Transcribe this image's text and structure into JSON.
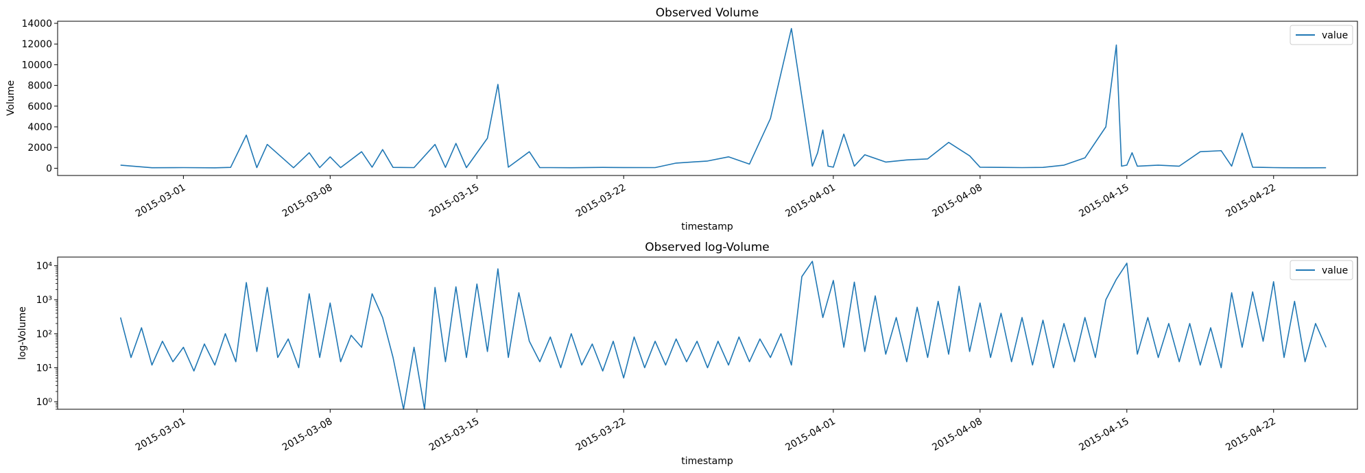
{
  "colors": {
    "series": "#1f77b4",
    "axis": "#000000",
    "background": "#ffffff"
  },
  "chart_data": [
    {
      "type": "line",
      "title": "Observed Volume",
      "xlabel": "timestamp",
      "ylabel": "Volume",
      "yscale": "linear",
      "x_range": [
        "2015-02-23",
        "2015-04-26"
      ],
      "ylim": [
        -700,
        14200
      ],
      "yticks": [
        0,
        2000,
        4000,
        6000,
        8000,
        10000,
        12000,
        14000
      ],
      "ytick_labels": [
        "0",
        "2000",
        "4000",
        "6000",
        "8000",
        "10000",
        "12000",
        "14000"
      ],
      "xticks": [
        "2015-03-01",
        "2015-03-08",
        "2015-03-15",
        "2015-03-22",
        "2015-04-01",
        "2015-04-08",
        "2015-04-15",
        "2015-04-22"
      ],
      "legend": {
        "position": "top-right",
        "entries": [
          "value"
        ]
      },
      "series": [
        {
          "name": "value",
          "x": [
            "2015-02-26 00:00",
            "2015-02-27 12:00",
            "2015-03-01 00:00",
            "2015-03-02 12:00",
            "2015-03-03 06:00",
            "2015-03-04 00:00",
            "2015-03-04 12:00",
            "2015-03-05 00:00",
            "2015-03-06 06:00",
            "2015-03-07 00:00",
            "2015-03-07 12:00",
            "2015-03-08 00:00",
            "2015-03-08 12:00",
            "2015-03-09 12:00",
            "2015-03-10 00:00",
            "2015-03-10 12:00",
            "2015-03-11 00:00",
            "2015-03-12 00:00",
            "2015-03-13 00:00",
            "2015-03-13 12:00",
            "2015-03-14 00:00",
            "2015-03-14 12:00",
            "2015-03-15 12:00",
            "2015-03-16 00:00",
            "2015-03-16 12:00",
            "2015-03-17 12:00",
            "2015-03-18 00:00",
            "2015-03-18 12:00",
            "2015-03-19 12:00",
            "2015-03-21 00:00",
            "2015-03-22 00:00",
            "2015-03-23 12:00",
            "2015-03-24 12:00",
            "2015-03-26 00:00",
            "2015-03-27 00:00",
            "2015-03-28 00:00",
            "2015-03-29 00:00",
            "2015-03-30 00:00",
            "2015-03-31 00:00",
            "2015-03-31 06:00",
            "2015-03-31 12:00",
            "2015-03-31 18:00",
            "2015-04-01 00:00",
            "2015-04-01 12:00",
            "2015-04-02 00:00",
            "2015-04-02 12:00",
            "2015-04-03 12:00",
            "2015-04-04 12:00",
            "2015-04-05 12:00",
            "2015-04-06 12:00",
            "2015-04-07 12:00",
            "2015-04-08 00:00",
            "2015-04-09 00:00",
            "2015-04-10 00:00",
            "2015-04-11 00:00",
            "2015-04-12 00:00",
            "2015-04-13 00:00",
            "2015-04-14 00:00",
            "2015-04-14 12:00",
            "2015-04-14 18:00",
            "2015-04-15 00:00",
            "2015-04-15 06:00",
            "2015-04-15 12:00",
            "2015-04-16 12:00",
            "2015-04-17 12:00",
            "2015-04-18 12:00",
            "2015-04-19 12:00",
            "2015-04-20 00:00",
            "2015-04-20 12:00",
            "2015-04-21 00:00",
            "2015-04-21 12:00",
            "2015-04-22 00:00",
            "2015-04-22 12:00",
            "2015-04-23 12:00",
            "2015-04-24 12:00"
          ],
          "values": [
            300,
            50,
            60,
            40,
            80,
            3200,
            60,
            2300,
            50,
            1500,
            60,
            1100,
            60,
            1600,
            100,
            1800,
            80,
            60,
            2300,
            80,
            2400,
            60,
            2900,
            8100,
            100,
            1600,
            60,
            60,
            50,
            80,
            70,
            60,
            500,
            700,
            1100,
            400,
            4800,
            13500,
            200,
            1500,
            3700,
            200,
            100,
            3300,
            200,
            1300,
            600,
            800,
            900,
            2500,
            1200,
            100,
            80,
            60,
            80,
            300,
            1000,
            4000,
            11900,
            200,
            300,
            1500,
            200,
            300,
            200,
            1600,
            1700,
            200,
            3400,
            100,
            80,
            60,
            50,
            40,
            50
          ]
        }
      ]
    },
    {
      "type": "line",
      "title": "Observed log-Volume",
      "xlabel": "timestamp",
      "ylabel": "log-Volume",
      "yscale": "log",
      "x_range": [
        "2015-02-23",
        "2015-04-26"
      ],
      "ylim": [
        0.6,
        18000
      ],
      "yticks": [
        1,
        10,
        100,
        1000,
        10000
      ],
      "ytick_labels": [
        "10⁰",
        "10¹",
        "10²",
        "10³",
        "10⁴"
      ],
      "xticks": [
        "2015-03-01",
        "2015-03-08",
        "2015-03-15",
        "2015-03-22",
        "2015-04-01",
        "2015-04-08",
        "2015-04-15",
        "2015-04-22"
      ],
      "legend": {
        "position": "top-right",
        "entries": [
          "value"
        ]
      },
      "series": [
        {
          "name": "value",
          "x": [
            "2015-02-26 00:00",
            "2015-02-26 12:00",
            "2015-02-27 00:00",
            "2015-02-27 12:00",
            "2015-02-28 00:00",
            "2015-02-28 12:00",
            "2015-03-01 00:00",
            "2015-03-01 12:00",
            "2015-03-02 00:00",
            "2015-03-02 12:00",
            "2015-03-03 00:00",
            "2015-03-03 12:00",
            "2015-03-04 00:00",
            "2015-03-04 12:00",
            "2015-03-05 00:00",
            "2015-03-05 12:00",
            "2015-03-06 00:00",
            "2015-03-06 12:00",
            "2015-03-07 00:00",
            "2015-03-07 12:00",
            "2015-03-08 00:00",
            "2015-03-08 12:00",
            "2015-03-09 00:00",
            "2015-03-09 12:00",
            "2015-03-10 00:00",
            "2015-03-10 12:00",
            "2015-03-11 00:00",
            "2015-03-11 12:00",
            "2015-03-12 00:00",
            "2015-03-12 12:00",
            "2015-03-13 00:00",
            "2015-03-13 12:00",
            "2015-03-14 00:00",
            "2015-03-14 12:00",
            "2015-03-15 00:00",
            "2015-03-15 12:00",
            "2015-03-16 00:00",
            "2015-03-16 12:00",
            "2015-03-17 00:00",
            "2015-03-17 12:00",
            "2015-03-18 00:00",
            "2015-03-18 12:00",
            "2015-03-19 00:00",
            "2015-03-19 12:00",
            "2015-03-20 00:00",
            "2015-03-20 12:00",
            "2015-03-21 00:00",
            "2015-03-21 12:00",
            "2015-03-22 00:00",
            "2015-03-22 12:00",
            "2015-03-23 00:00",
            "2015-03-23 12:00",
            "2015-03-24 00:00",
            "2015-03-24 12:00",
            "2015-03-25 00:00",
            "2015-03-25 12:00",
            "2015-03-26 00:00",
            "2015-03-26 12:00",
            "2015-03-27 00:00",
            "2015-03-27 12:00",
            "2015-03-28 00:00",
            "2015-03-28 12:00",
            "2015-03-29 00:00",
            "2015-03-29 12:00",
            "2015-03-30 00:00",
            "2015-03-30 12:00",
            "2015-03-31 00:00",
            "2015-03-31 12:00",
            "2015-04-01 00:00",
            "2015-04-01 12:00",
            "2015-04-02 00:00",
            "2015-04-02 12:00",
            "2015-04-03 00:00",
            "2015-04-03 12:00",
            "2015-04-04 00:00",
            "2015-04-04 12:00",
            "2015-04-05 00:00",
            "2015-04-05 12:00",
            "2015-04-06 00:00",
            "2015-04-06 12:00",
            "2015-04-07 00:00",
            "2015-04-07 12:00",
            "2015-04-08 00:00",
            "2015-04-08 12:00",
            "2015-04-09 00:00",
            "2015-04-09 12:00",
            "2015-04-10 00:00",
            "2015-04-10 12:00",
            "2015-04-11 00:00",
            "2015-04-11 12:00",
            "2015-04-12 00:00",
            "2015-04-12 12:00",
            "2015-04-13 00:00",
            "2015-04-13 12:00",
            "2015-04-14 00:00",
            "2015-04-14 12:00",
            "2015-04-15 00:00",
            "2015-04-15 12:00",
            "2015-04-16 00:00",
            "2015-04-16 12:00",
            "2015-04-17 00:00",
            "2015-04-17 12:00",
            "2015-04-18 00:00",
            "2015-04-18 12:00",
            "2015-04-19 00:00",
            "2015-04-19 12:00",
            "2015-04-20 00:00",
            "2015-04-20 12:00",
            "2015-04-21 00:00",
            "2015-04-21 12:00",
            "2015-04-22 00:00",
            "2015-04-22 12:00",
            "2015-04-23 00:00",
            "2015-04-23 12:00",
            "2015-04-24 00:00",
            "2015-04-24 12:00"
          ],
          "values": [
            300,
            20,
            150,
            12,
            60,
            15,
            40,
            8,
            50,
            12,
            100,
            15,
            3200,
            30,
            2300,
            20,
            70,
            10,
            1500,
            20,
            800,
            15,
            90,
            40,
            1500,
            300,
            20,
            0.6,
            40,
            0.6,
            2300,
            15,
            2400,
            20,
            2900,
            30,
            8100,
            20,
            1600,
            60,
            15,
            80,
            10,
            100,
            12,
            50,
            8,
            60,
            5,
            80,
            10,
            60,
            12,
            70,
            15,
            60,
            10,
            60,
            12,
            80,
            15,
            70,
            20,
            100,
            12,
            4800,
            13500,
            300,
            3700,
            40,
            3300,
            30,
            1300,
            25,
            300,
            15,
            600,
            20,
            900,
            25,
            2500,
            30,
            800,
            20,
            400,
            15,
            300,
            12,
            250,
            10,
            200,
            15,
            300,
            20,
            1000,
            4000,
            11900,
            25,
            300,
            20,
            200,
            15,
            200,
            12,
            150,
            10,
            1600,
            40,
            1700,
            60,
            3400,
            20,
            900,
            15,
            200,
            40
          ]
        }
      ]
    }
  ]
}
